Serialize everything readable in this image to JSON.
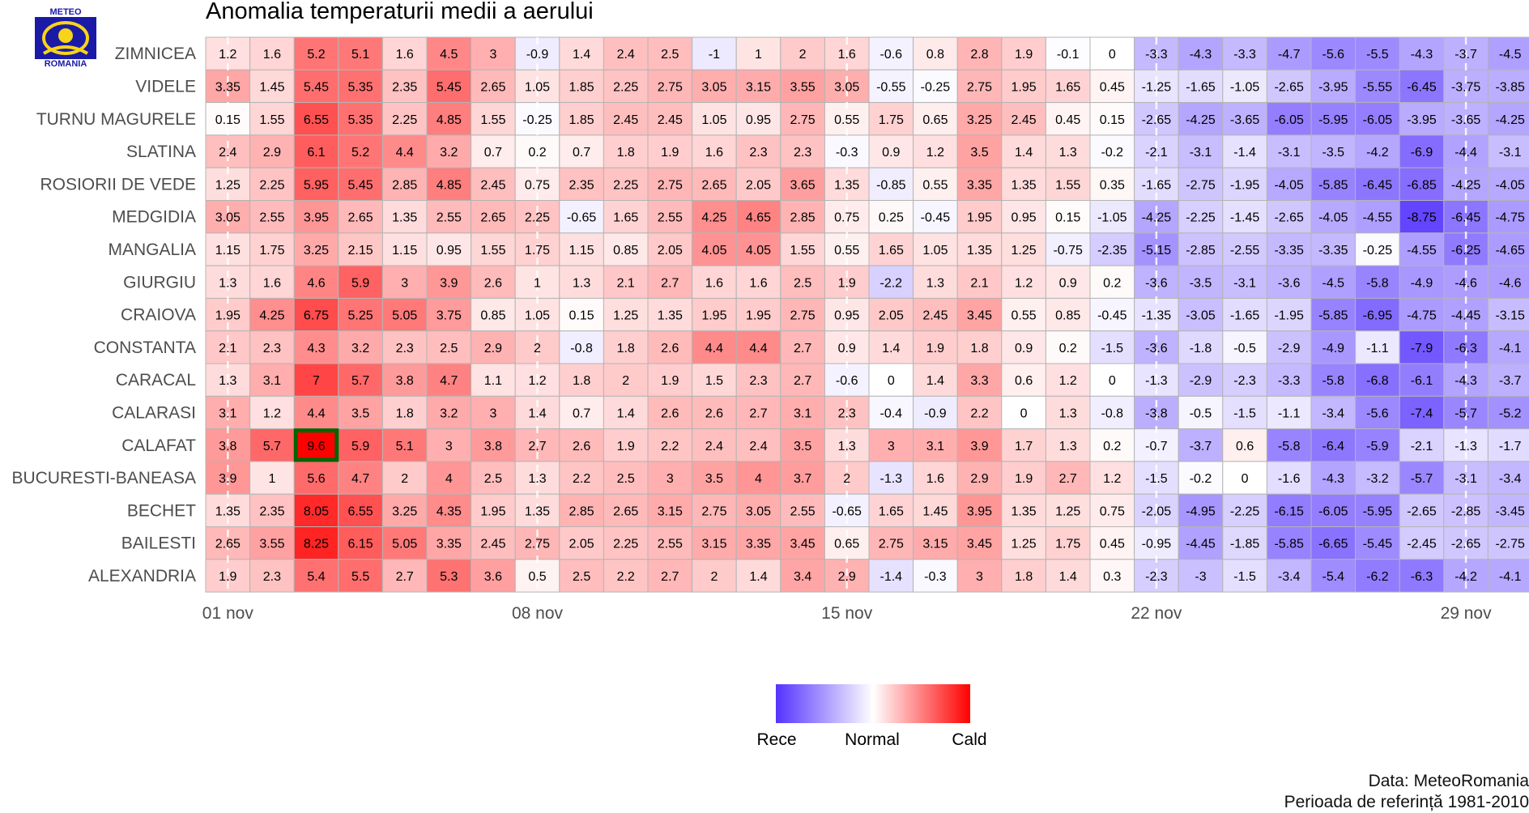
{
  "logo": {
    "top_text": "METEO",
    "bottom_text": "ROMANIA",
    "colors": {
      "blue": "#1a1aa6",
      "yellow": "#f7d417"
    }
  },
  "source_lines": [
    "Data: MeteoRomania",
    "Perioada de referință 1981-2010"
  ],
  "chart_data": {
    "type": "heatmap",
    "title": "Anomalia temperaturii medii a aerului",
    "xlabel": "",
    "ylabel": "",
    "x": [
      "01 nov",
      "02 nov",
      "03 nov",
      "04 nov",
      "05 nov",
      "06 nov",
      "07 nov",
      "08 nov",
      "09 nov",
      "10 nov",
      "11 nov",
      "12 nov",
      "13 nov",
      "14 nov",
      "15 nov",
      "16 nov",
      "17 nov",
      "18 nov",
      "19 nov",
      "20 nov",
      "21 nov",
      "22 nov",
      "23 nov",
      "24 nov",
      "25 nov",
      "26 nov",
      "27 nov",
      "28 nov",
      "29 nov",
      "30 nov"
    ],
    "x_ticks": [
      "01 nov",
      "08 nov",
      "15 nov",
      "22 nov",
      "29 nov"
    ],
    "rows": [
      {
        "name": "ZIMNICEA",
        "values": [
          1.2,
          1.6,
          5.2,
          5.1,
          1.6,
          4.5,
          3,
          -0.9,
          1.4,
          2.4,
          2.5,
          -1,
          1,
          2,
          1.6,
          -0.6,
          0.8,
          2.8,
          1.9,
          -0.1,
          0,
          -3.3,
          -4.3,
          -3.3,
          -4.7,
          -5.6,
          -5.5,
          -4.3,
          -3.7,
          -4.5
        ]
      },
      {
        "name": "VIDELE",
        "values": [
          3.35,
          1.45,
          5.45,
          5.35,
          2.35,
          5.45,
          2.65,
          1.05,
          1.85,
          2.25,
          2.75,
          3.05,
          3.15,
          3.55,
          3.05,
          -0.55,
          -0.25,
          2.75,
          1.95,
          1.65,
          0.45,
          -1.25,
          -1.65,
          -1.05,
          -2.65,
          -3.95,
          -5.55,
          -6.45,
          -3.75,
          -3.85
        ]
      },
      {
        "name": "TURNU MAGURELE",
        "values": [
          0.15,
          1.55,
          6.55,
          5.35,
          2.25,
          4.85,
          1.55,
          -0.25,
          1.85,
          2.45,
          2.45,
          1.05,
          0.95,
          2.75,
          0.55,
          1.75,
          0.65,
          3.25,
          2.45,
          0.45,
          0.15,
          -2.65,
          -4.25,
          -3.65,
          -6.05,
          -5.95,
          -6.05,
          -3.95,
          -3.65,
          -4.25
        ]
      },
      {
        "name": "SLATINA",
        "values": [
          2.4,
          2.9,
          6.1,
          5.2,
          4.4,
          3.2,
          0.7,
          0.2,
          0.7,
          1.8,
          1.9,
          1.6,
          2.3,
          2.3,
          -0.3,
          0.9,
          1.2,
          3.5,
          1.4,
          1.3,
          -0.2,
          -2.1,
          -3.1,
          -1.4,
          -3.1,
          -3.5,
          -4.2,
          -6.9,
          -4.4,
          -3.1
        ]
      },
      {
        "name": "ROSIORII DE VEDE",
        "values": [
          1.25,
          2.25,
          5.95,
          5.45,
          2.85,
          4.85,
          2.45,
          0.75,
          2.35,
          2.25,
          2.75,
          2.65,
          2.05,
          3.65,
          1.35,
          -0.85,
          0.55,
          3.35,
          1.35,
          1.55,
          0.35,
          -1.65,
          -2.75,
          -1.95,
          -4.05,
          -5.85,
          -6.45,
          -6.85,
          -4.25,
          -4.05
        ]
      },
      {
        "name": "MEDGIDIA",
        "values": [
          3.05,
          2.55,
          3.95,
          2.65,
          1.35,
          2.55,
          2.65,
          2.25,
          -0.65,
          1.65,
          2.55,
          4.25,
          4.65,
          2.85,
          0.75,
          0.25,
          -0.45,
          1.95,
          0.95,
          0.15,
          -1.05,
          -4.25,
          -2.25,
          -1.45,
          -2.65,
          -4.05,
          -4.55,
          -8.75,
          -6.45,
          -4.75
        ]
      },
      {
        "name": "MANGALIA",
        "values": [
          1.15,
          1.75,
          3.25,
          2.15,
          1.15,
          0.95,
          1.55,
          1.75,
          1.15,
          0.85,
          2.05,
          4.05,
          4.05,
          1.55,
          0.55,
          1.65,
          1.05,
          1.35,
          1.25,
          -0.75,
          -2.35,
          -5.15,
          -2.85,
          -2.55,
          -3.35,
          -3.35,
          -0.25,
          -4.55,
          -6.25,
          -4.65
        ]
      },
      {
        "name": "GIURGIU",
        "values": [
          1.3,
          1.6,
          4.6,
          5.9,
          3,
          3.9,
          2.6,
          1,
          1.3,
          2.1,
          2.7,
          1.6,
          1.6,
          2.5,
          1.9,
          -2.2,
          1.3,
          2.1,
          1.2,
          0.9,
          0.2,
          -3.6,
          -3.5,
          -3.1,
          -3.6,
          -4.5,
          -5.8,
          -4.9,
          -4.6,
          -4.6
        ]
      },
      {
        "name": "CRAIOVA",
        "values": [
          1.95,
          4.25,
          6.75,
          5.25,
          5.05,
          3.75,
          0.85,
          1.05,
          0.15,
          1.25,
          1.35,
          1.95,
          1.95,
          2.75,
          0.95,
          2.05,
          2.45,
          3.45,
          0.55,
          0.85,
          -0.45,
          -1.35,
          -3.05,
          -1.65,
          -1.95,
          -5.85,
          -6.95,
          -4.75,
          -4.45,
          -3.15
        ]
      },
      {
        "name": "CONSTANTA",
        "values": [
          2.1,
          2.3,
          4.3,
          3.2,
          2.3,
          2.5,
          2.9,
          2,
          -0.8,
          1.8,
          2.6,
          4.4,
          4.4,
          2.7,
          0.9,
          1.4,
          1.9,
          1.8,
          0.9,
          0.2,
          -1.5,
          -3.6,
          -1.8,
          -0.5,
          -2.9,
          -4.9,
          -1.1,
          -7.9,
          -6.3,
          -4.1
        ]
      },
      {
        "name": "CARACAL",
        "values": [
          1.3,
          3.1,
          7,
          5.7,
          3.8,
          4.7,
          1.1,
          1.2,
          1.8,
          2,
          1.9,
          1.5,
          2.3,
          2.7,
          -0.6,
          0,
          1.4,
          3.3,
          0.6,
          1.2,
          0,
          -1.3,
          -2.9,
          -2.3,
          -3.3,
          -5.8,
          -6.8,
          -6.1,
          -4.3,
          -3.7
        ]
      },
      {
        "name": "CALARASI",
        "values": [
          3.1,
          1.2,
          4.4,
          3.5,
          1.8,
          3.2,
          3,
          1.4,
          0.7,
          1.4,
          2.6,
          2.6,
          2.7,
          3.1,
          2.3,
          -0.4,
          -0.9,
          2.2,
          0,
          1.3,
          -0.8,
          -3.8,
          -0.5,
          -1.5,
          -1.1,
          -3.4,
          -5.6,
          -7.4,
          -5.7,
          -5.2
        ]
      },
      {
        "name": "CALAFAT",
        "values": [
          3.8,
          5.7,
          9.6,
          5.9,
          5.1,
          3,
          3.8,
          2.7,
          2.6,
          1.9,
          2.2,
          2.4,
          2.4,
          3.5,
          1.3,
          3,
          3.1,
          3.9,
          1.7,
          1.3,
          0.2,
          -0.7,
          -3.7,
          0.6,
          -5.8,
          -6.4,
          -5.9,
          -2.1,
          -1.3,
          -1.7
        ]
      },
      {
        "name": "BUCURESTI-BANEASA",
        "values": [
          3.9,
          1,
          5.6,
          4.7,
          2,
          4,
          2.5,
          1.3,
          2.2,
          2.5,
          3,
          3.5,
          4,
          3.7,
          2,
          -1.3,
          1.6,
          2.9,
          1.9,
          2.7,
          1.2,
          -1.5,
          -0.2,
          0,
          -1.6,
          -4.3,
          -3.2,
          -5.7,
          -3.1,
          -3.4
        ]
      },
      {
        "name": "BECHET",
        "values": [
          1.35,
          2.35,
          8.05,
          6.55,
          3.25,
          4.35,
          1.95,
          1.35,
          2.85,
          2.65,
          3.15,
          2.75,
          3.05,
          2.55,
          -0.65,
          1.65,
          1.45,
          3.95,
          1.35,
          1.25,
          0.75,
          -2.05,
          -4.95,
          -2.25,
          -6.15,
          -6.05,
          -5.95,
          -2.65,
          -2.85,
          -3.45
        ]
      },
      {
        "name": "BAILESTI",
        "values": [
          2.65,
          3.55,
          8.25,
          6.15,
          5.05,
          3.35,
          2.45,
          2.75,
          2.05,
          2.25,
          2.55,
          3.15,
          3.35,
          3.45,
          0.65,
          2.75,
          3.15,
          3.45,
          1.25,
          1.75,
          0.45,
          -0.95,
          -4.45,
          -1.85,
          -5.85,
          -6.65,
          -5.45,
          -2.45,
          -2.65,
          -2.75
        ]
      },
      {
        "name": "ALEXANDRIA",
        "values": [
          1.9,
          2.3,
          5.4,
          5.5,
          2.7,
          5.3,
          3.6,
          0.5,
          2.5,
          2.2,
          2.7,
          2,
          1.4,
          3.4,
          2.9,
          -1.4,
          -0.3,
          3,
          1.8,
          1.4,
          0.3,
          -2.3,
          -3,
          -1.5,
          -3.4,
          -5.4,
          -6.2,
          -6.3,
          -4.2,
          -4.1
        ]
      }
    ],
    "color_scale": {
      "low": "#5533ff",
      "mid": "#ffffff",
      "high": "#ff0000",
      "domain": [
        -9.6,
        0,
        9.6
      ]
    },
    "highlight": {
      "row": "CALAFAT",
      "x": "03 nov",
      "value": 9.6,
      "border_color": "#006400"
    },
    "legend": {
      "placement": "bottom-center",
      "labels": [
        "Rece",
        "Normal",
        "Cald"
      ]
    },
    "grid": true
  }
}
